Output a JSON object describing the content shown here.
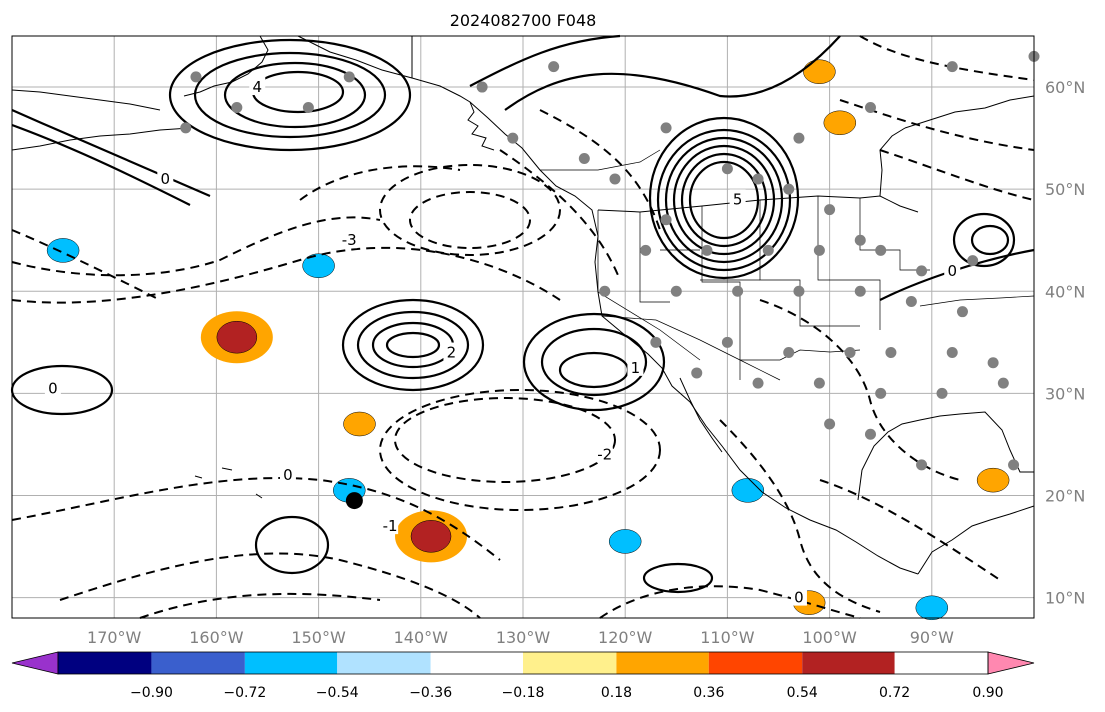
{
  "title": "2024082700 F048",
  "map": {
    "lon_range": [
      -180,
      -80
    ],
    "lat_range": [
      8,
      65
    ],
    "lon_ticks": [
      {
        "value": -170,
        "label": "170°W"
      },
      {
        "value": -160,
        "label": "160°W"
      },
      {
        "value": -150,
        "label": "150°W"
      },
      {
        "value": -140,
        "label": "140°W"
      },
      {
        "value": -130,
        "label": "130°W"
      },
      {
        "value": -120,
        "label": "120°W"
      },
      {
        "value": -110,
        "label": "110°W"
      },
      {
        "value": -100,
        "label": "100°W"
      },
      {
        "value": -90,
        "label": "90°W"
      }
    ],
    "lat_ticks": [
      {
        "value": 60,
        "label": "60°N"
      },
      {
        "value": 50,
        "label": "50°N"
      },
      {
        "value": 40,
        "label": "40°N"
      },
      {
        "value": 30,
        "label": "30°N"
      },
      {
        "value": 20,
        "label": "20°N"
      },
      {
        "value": 10,
        "label": "10°N"
      }
    ],
    "gridlines": true,
    "line_contours": [
      {
        "lon": -137,
        "lat": 34,
        "label": "2",
        "style": "solid"
      },
      {
        "lon": -119,
        "lat": 32.5,
        "label": "1",
        "style": "solid"
      },
      {
        "lon": -109,
        "lat": 49,
        "label": "5",
        "style": "solid"
      },
      {
        "lon": -156,
        "lat": 60,
        "label": "4",
        "style": "solid"
      },
      {
        "lon": -153,
        "lat": 22,
        "label": "0",
        "style": "solid"
      },
      {
        "lon": -103,
        "lat": 10,
        "label": "0",
        "style": "solid"
      },
      {
        "lon": -176,
        "lat": 30.5,
        "label": "0",
        "style": "solid"
      },
      {
        "lon": -88,
        "lat": 42,
        "label": "0",
        "style": "solid"
      },
      {
        "lon": -143,
        "lat": 17,
        "label": "-1",
        "style": "dashed"
      },
      {
        "lon": -122,
        "lat": 24,
        "label": "-2",
        "style": "dashed"
      },
      {
        "lon": -147,
        "lat": 45,
        "label": "-3",
        "style": "dashed"
      },
      {
        "lon": -165,
        "lat": 51,
        "label": "0",
        "style": "dashed"
      }
    ],
    "shaded_areas": [
      {
        "lon": -158,
        "lat": 35.5,
        "value": 0.72
      },
      {
        "lon": -139,
        "lat": 16,
        "value": 0.72
      },
      {
        "lon": -146,
        "lat": 27,
        "value": 0.36
      },
      {
        "lon": -99,
        "lat": 56.5,
        "value": 0.36
      },
      {
        "lon": -101,
        "lat": 61.5,
        "value": 0.36
      },
      {
        "lon": -102,
        "lat": 9.5,
        "value": 0.36
      },
      {
        "lon": -84,
        "lat": 21.5,
        "value": 0.36
      },
      {
        "lon": -147,
        "lat": 20.5,
        "value": -0.54
      },
      {
        "lon": -120,
        "lat": 15.5,
        "value": -0.54
      },
      {
        "lon": -108,
        "lat": 20.5,
        "value": -0.54
      },
      {
        "lon": -150,
        "lat": 42.5,
        "value": -0.54
      },
      {
        "lon": -90,
        "lat": 9,
        "value": -0.54
      },
      {
        "lon": -175,
        "lat": 44,
        "value": -0.54
      }
    ],
    "station_markers": [
      [
        -121,
        51
      ],
      [
        -116,
        47
      ],
      [
        -110,
        52
      ],
      [
        -107,
        51
      ],
      [
        -104,
        50
      ],
      [
        -100,
        48
      ],
      [
        -97,
        45
      ],
      [
        -118,
        44
      ],
      [
        -112,
        44
      ],
      [
        -106,
        44
      ],
      [
        -101,
        44
      ],
      [
        -95,
        44
      ],
      [
        -91,
        42
      ],
      [
        -86,
        43
      ],
      [
        -122,
        40
      ],
      [
        -115,
        40
      ],
      [
        -109,
        40
      ],
      [
        -103,
        40
      ],
      [
        -97,
        40
      ],
      [
        -92,
        39
      ],
      [
        -87,
        38
      ],
      [
        -117,
        35
      ],
      [
        -110,
        35
      ],
      [
        -104,
        34
      ],
      [
        -98,
        34
      ],
      [
        -94,
        34
      ],
      [
        -88,
        34
      ],
      [
        -84,
        33
      ],
      [
        -113,
        32
      ],
      [
        -107,
        31
      ],
      [
        -101,
        31
      ],
      [
        -95,
        30
      ],
      [
        -89,
        30
      ],
      [
        -83,
        31
      ],
      [
        -100,
        27
      ],
      [
        -96,
        26
      ],
      [
        -91,
        23
      ],
      [
        -82,
        23
      ],
      [
        -147,
        61
      ],
      [
        -162,
        61
      ],
      [
        -158,
        58
      ],
      [
        -151,
        58
      ],
      [
        -163,
        56
      ],
      [
        -134,
        60
      ],
      [
        -127,
        62
      ],
      [
        -116,
        56
      ],
      [
        -124,
        53
      ],
      [
        -131,
        55
      ],
      [
        -103,
        55
      ],
      [
        -96,
        58
      ],
      [
        -88,
        62
      ],
      [
        -80,
        63
      ]
    ],
    "storm_marker": {
      "lon": -146.5,
      "lat": 19.5
    }
  },
  "colorbar": {
    "colors": [
      "#9932cc",
      "#000080",
      "#3a5fcd",
      "#00bfff",
      "#b0e2ff",
      "#ffffff",
      "#fff08c",
      "#ffa500",
      "#ff4500",
      "#b22222",
      "#ff88b0"
    ],
    "tick_labels": [
      "−0.90",
      "−0.72",
      "−0.54",
      "−0.36",
      "−0.18",
      "0.18",
      "0.36",
      "0.54",
      "0.72",
      "0.90"
    ]
  }
}
